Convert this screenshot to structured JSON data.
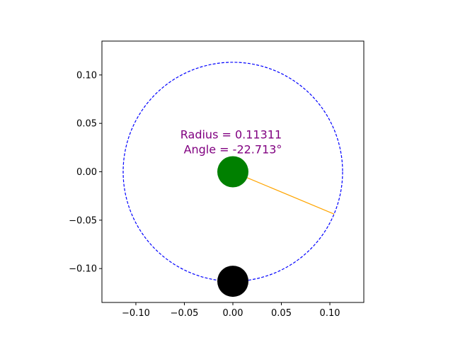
{
  "chart_data": {
    "type": "scatter",
    "title": "",
    "xlabel": "",
    "ylabel": "",
    "xlim": [
      -0.135,
      0.135
    ],
    "ylim": [
      -0.135,
      0.135
    ],
    "grid": false,
    "x_ticks": [
      -0.1,
      -0.05,
      0.0,
      0.05,
      0.1
    ],
    "x_tick_labels": [
      "−0.10",
      "−0.05",
      "0.00",
      "0.05",
      "0.10"
    ],
    "y_ticks": [
      0.1,
      0.05,
      0.0,
      -0.05,
      -0.1
    ],
    "y_tick_labels": [
      "0.10",
      "0.05",
      "0.00",
      "−0.05",
      "−0.10"
    ],
    "circle": {
      "center": [
        0.0,
        0.0
      ],
      "radius": 0.11311,
      "color": "#0000ff",
      "style": "dashed"
    },
    "radius_line": {
      "from": [
        0.0,
        0.0
      ],
      "to": [
        0.10434,
        -0.04367
      ],
      "color": "#ffa500"
    },
    "points": [
      {
        "x": 0.0,
        "y": 0.0,
        "color": "#008000"
      },
      {
        "x": 0.0,
        "y": -0.11311,
        "color": "#000000"
      }
    ],
    "annotation": {
      "lines": [
        "Radius = 0.11311",
        "Angle = -22.713°"
      ],
      "x": 0.0,
      "y": 0.033,
      "color": "#800080"
    }
  }
}
